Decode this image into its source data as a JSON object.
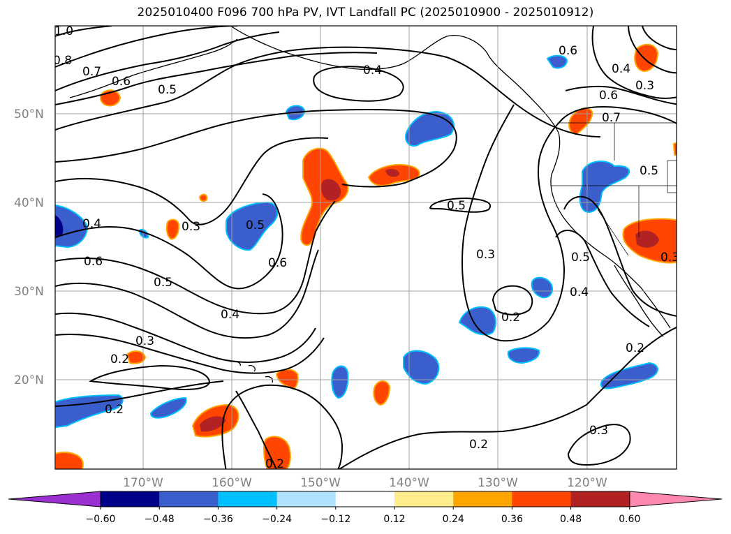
{
  "title": "2025010400 F096 700 hPa PV, IVT Landfall PC (2025010900 - 2025010912)",
  "lat_labels": [
    "50°N",
    "40°N",
    "30°N",
    "20°N"
  ],
  "lon_labels": [
    "170°W",
    "160°W",
    "150°W",
    "140°W",
    "130°W",
    "120°W"
  ],
  "colorbar": {
    "colors": [
      "#9b30d0",
      "#00008b",
      "#3a5fcd",
      "#00bfff",
      "#b0e2ff",
      "#ffffff",
      "#ffec8b",
      "#ffa500",
      "#ff4500",
      "#b22222",
      "#ff88b0"
    ],
    "tick_labels": [
      "−0.60",
      "−0.48",
      "−0.36",
      "−0.24",
      "−0.12",
      "0.12",
      "0.24",
      "0.36",
      "0.48",
      "0.60"
    ]
  },
  "contour_labels": [
    "1.0",
    "0.8",
    "0.7",
    "0.6",
    "0.5",
    "0.4",
    "0.6",
    "0.4",
    "0.3",
    "0.6",
    "0.7",
    "0.5",
    "0.5",
    "0.3",
    "0.5",
    "0.6",
    "0.4",
    "0.6",
    "0.5",
    "0.4",
    "0.3",
    "0.2",
    "0.2",
    "0.3",
    "0.2",
    "0.4",
    "0.5",
    "0.3",
    "0.2",
    "0.2",
    "0.3",
    "0.2"
  ]
}
